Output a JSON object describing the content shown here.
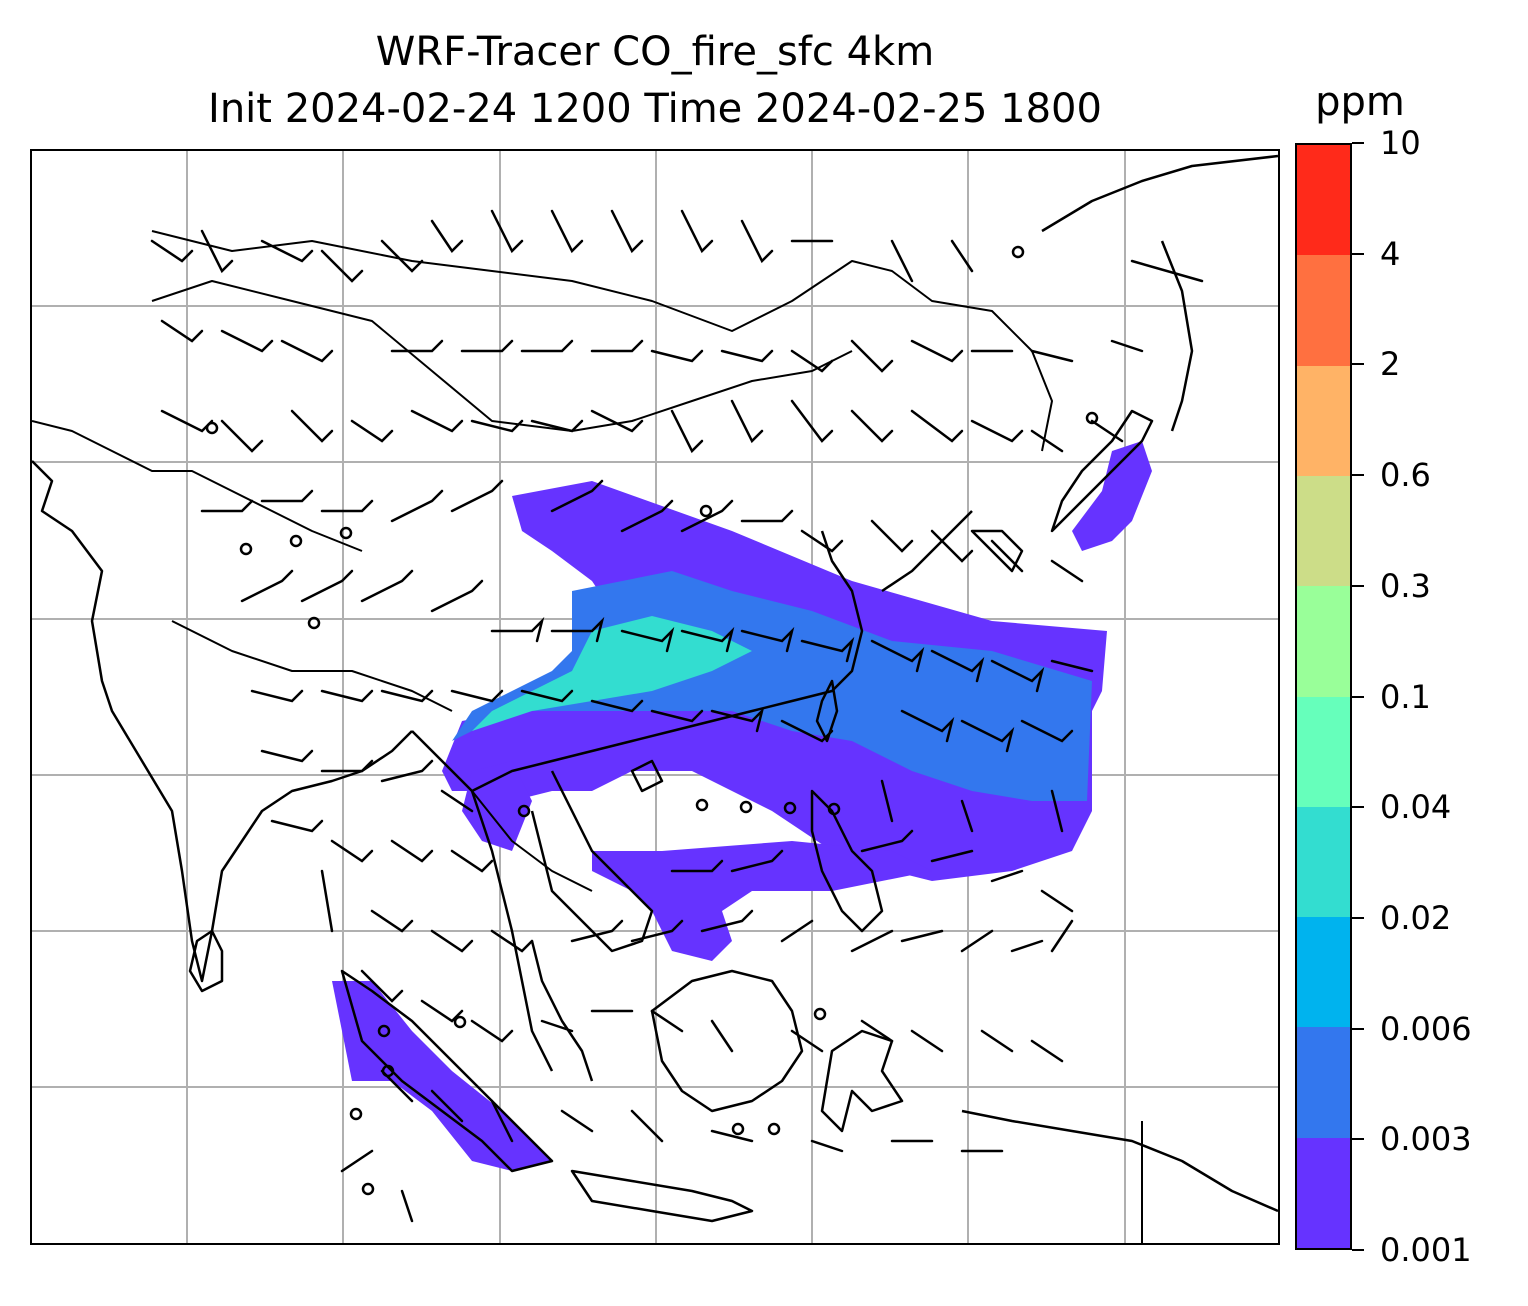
{
  "title": {
    "line1": "WRF-Tracer CO_fire_sfc 4km",
    "line2": "Init 2024-02-24 1200 Time 2024-02-25 1800"
  },
  "colorbar": {
    "units": "ppm",
    "levels": [
      "0.001",
      "0.003",
      "0.006",
      "0.02",
      "0.04",
      "0.1",
      "0.3",
      "0.6",
      "2",
      "4",
      "10"
    ],
    "colors": [
      "#6633ff",
      "#3377ee",
      "#00b3ee",
      "#33ddd0",
      "#66ffbb",
      "#99ff99",
      "#ccdd88",
      "#ffb366",
      "#ff7040",
      "#ff2a1a"
    ]
  },
  "colors": {
    "gridline": "#b0b0b0",
    "coastline": "#000000",
    "barb": "#000000"
  }
}
